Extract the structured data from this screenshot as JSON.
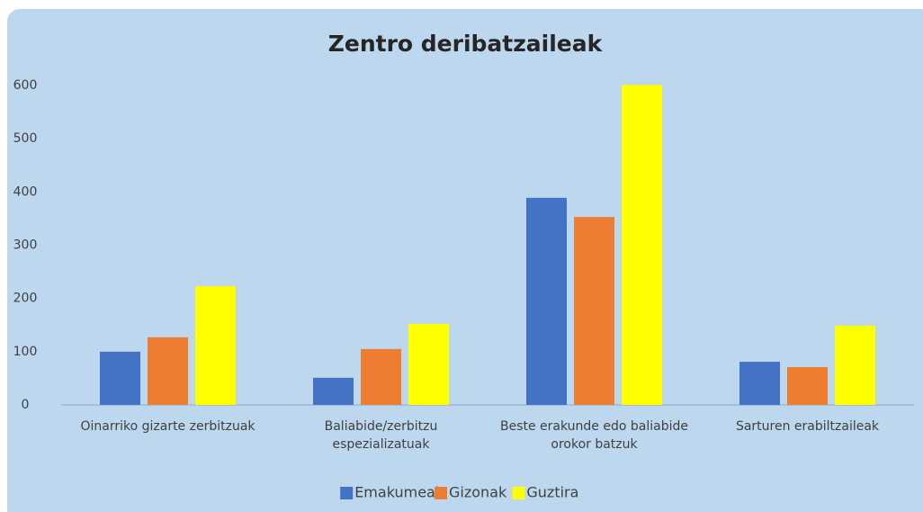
{
  "chart_data": {
    "type": "bar",
    "title": "Zentro deribatzaileak",
    "categories": [
      "Oinarriko gizarte zerbitzuak",
      "Baliabide/zerbitzu espezializatuak",
      "Beste erakunde edo baliabide orokor batzuk",
      "Sarturen erabiltzaileak"
    ],
    "series": [
      {
        "name": "Emakumeak",
        "color": "#4472c4",
        "values": [
          100,
          51,
          389,
          81
        ]
      },
      {
        "name": "Gizonak",
        "color": "#ed7d31",
        "values": [
          127,
          105,
          353,
          71
        ]
      },
      {
        "name": "Guztira",
        "color": "#ffff00",
        "values": [
          223,
          152,
          601,
          149
        ]
      }
    ],
    "ylim": [
      0,
      600
    ],
    "yticks": [
      0,
      100,
      200,
      300,
      400,
      500,
      600
    ],
    "grid": false,
    "legend": "bottom"
  }
}
